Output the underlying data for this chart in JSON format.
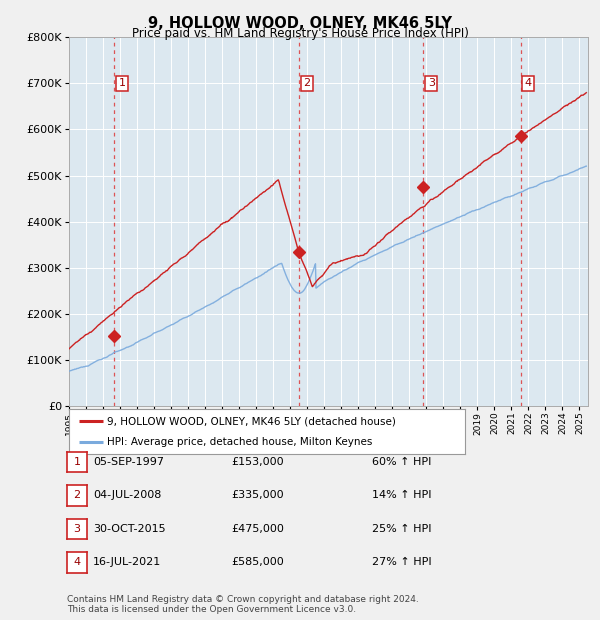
{
  "title": "9, HOLLOW WOOD, OLNEY, MK46 5LY",
  "subtitle": "Price paid vs. HM Land Registry's House Price Index (HPI)",
  "legend_line1": "9, HOLLOW WOOD, OLNEY, MK46 5LY (detached house)",
  "legend_line2": "HPI: Average price, detached house, Milton Keynes",
  "table_rows": [
    {
      "num": 1,
      "date": "05-SEP-1997",
      "price": "£153,000",
      "pct": "60% ↑ HPI"
    },
    {
      "num": 2,
      "date": "04-JUL-2008",
      "price": "£335,000",
      "pct": "14% ↑ HPI"
    },
    {
      "num": 3,
      "date": "30-OCT-2015",
      "price": "£475,000",
      "pct": "25% ↑ HPI"
    },
    {
      "num": 4,
      "date": "16-JUL-2021",
      "price": "£585,000",
      "pct": "27% ↑ HPI"
    }
  ],
  "footnote1": "Contains HM Land Registry data © Crown copyright and database right 2024.",
  "footnote2": "This data is licensed under the Open Government Licence v3.0.",
  "hpi_color": "#7aaadd",
  "price_color": "#cc2222",
  "plot_bg": "#dce8f0",
  "dashed_color": "#dd4444",
  "marker_color": "#cc2222",
  "ylim": [
    0,
    800000
  ],
  "yticks": [
    0,
    100000,
    200000,
    300000,
    400000,
    500000,
    600000,
    700000,
    800000
  ],
  "xlim_start": 1995.0,
  "xlim_end": 2025.5,
  "sale_years": [
    1997.67,
    2008.5,
    2015.83,
    2021.54
  ],
  "sale_prices": [
    153000,
    335000,
    475000,
    585000
  ]
}
